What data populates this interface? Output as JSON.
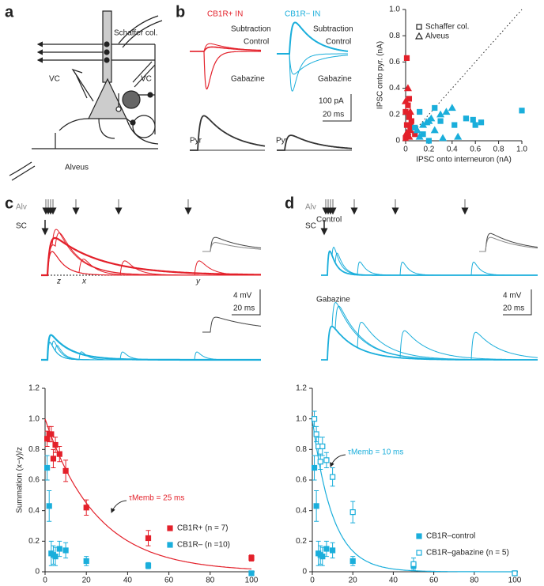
{
  "panel_labels": [
    "a",
    "b",
    "c",
    "d"
  ],
  "diagram": {
    "labels": [
      "Schaffer col.",
      "VC",
      "VC",
      "Alveus"
    ]
  },
  "traces": {
    "b": {
      "titles": [
        "CB1R+ IN",
        "CB1R− IN"
      ],
      "labels": [
        "Subtraction",
        "Control",
        "Gabazine",
        "Subtraction",
        "Control",
        "Gabazine"
      ],
      "scale": [
        "100 pA",
        "20 ms"
      ],
      "pyr": [
        "Pyr",
        "Pyr"
      ]
    },
    "c": {
      "stim": [
        "Alv",
        "SC"
      ],
      "markers": [
        "z",
        "x",
        "y"
      ],
      "scale": [
        "4 mV",
        "20 ms"
      ]
    },
    "d": {
      "stim": [
        "Alv",
        "SC"
      ],
      "conditions": [
        "Control",
        "Gabazine"
      ],
      "scale": [
        "4 mV",
        "20 ms"
      ]
    }
  },
  "chart_data": [
    {
      "type": "scatter",
      "xlabel": "IPSC onto interneuron (nA)",
      "ylabel": "IPSC onto pyr. (nA)",
      "xlim": [
        0,
        1
      ],
      "ylim": [
        0,
        1
      ],
      "xticks": [
        0,
        0.2,
        0.4,
        0.6,
        0.8,
        {
          "value": 1,
          "label": "1.0"
        }
      ],
      "yticks": [
        0,
        0.2,
        0.4,
        0.6,
        0.8,
        {
          "value": 1,
          "label": "1.0"
        }
      ],
      "identity_line": true,
      "legend": [
        {
          "label": "Schaffer col.",
          "marker": "square"
        },
        {
          "label": "Alveus",
          "marker": "triangle"
        }
      ],
      "series": [
        {
          "color": "#e3202a",
          "marker": "square",
          "filled": true,
          "x": [
            0.01,
            0.02,
            0.0,
            0.03,
            0.01,
            0.04,
            0.02,
            0.0,
            0.05,
            0.08,
            0.03
          ],
          "values": [
            0.63,
            0.27,
            0.22,
            0.18,
            0.12,
            0.08,
            0.05,
            0.02,
            0.15,
            0.05,
            0.32
          ]
        },
        {
          "color": "#e3202a",
          "marker": "triangle",
          "filled": true,
          "x": [
            0.02,
            0.0,
            0.04,
            0.05,
            0.01,
            0.03
          ],
          "values": [
            0.4,
            0.3,
            0.22,
            0.12,
            0.06,
            0.03
          ]
        },
        {
          "color": "#1aaedb",
          "marker": "square",
          "filled": true,
          "x": [
            1.0,
            0.58,
            0.52,
            0.6,
            0.65,
            0.42,
            0.3,
            0.25,
            0.12,
            0.08,
            0.15,
            0.2
          ],
          "values": [
            0.23,
            0.16,
            0.17,
            0.12,
            0.14,
            0.12,
            0.15,
            0.25,
            0.22,
            0.1,
            0.05,
            0.0
          ]
        },
        {
          "color": "#1aaedb",
          "marker": "triangle",
          "filled": true,
          "x": [
            0.35,
            0.4,
            0.3,
            0.2,
            0.22,
            0.15,
            0.1,
            0.25,
            0.12,
            0.32,
            0.45,
            0.18
          ],
          "values": [
            0.22,
            0.25,
            0.2,
            0.15,
            0.17,
            0.12,
            0.08,
            0.08,
            0.03,
            0.02,
            0.03,
            0.14
          ]
        }
      ]
    },
    {
      "type": "scatter",
      "xlabel": "ISI (ms)",
      "ylabel": "Summation (x−y)/z",
      "xlim": [
        0,
        100
      ],
      "ylim": [
        0,
        1.2
      ],
      "xticks": [
        0,
        20,
        40,
        60,
        80,
        100
      ],
      "yticks": [
        0,
        0.2,
        0.4,
        0.6,
        0.8,
        {
          "value": 1,
          "label": "1.0"
        },
        1.2
      ],
      "fit": {
        "tau": 25,
        "label": "τMemb = 25 ms",
        "color": "#e3202a"
      },
      "series": [
        {
          "name": "CB1R+ (n = 7)",
          "color": "#e3202a",
          "marker": "square",
          "filled": true,
          "x": [
            1,
            2,
            3,
            4,
            5,
            7,
            10,
            20,
            50,
            100
          ],
          "values": [
            0.87,
            0.9,
            0.9,
            0.74,
            0.83,
            0.77,
            0.66,
            0.42,
            0.22,
            0.09
          ],
          "errors": [
            0.05,
            0.05,
            0.05,
            0.06,
            0.05,
            0.05,
            0.07,
            0.05,
            0.05,
            0.02
          ]
        },
        {
          "name": "CB1R– (n =10)",
          "color": "#1aaedb",
          "marker": "square",
          "filled": true,
          "x": [
            1,
            2,
            3,
            4,
            5,
            7,
            10,
            20,
            50,
            100
          ],
          "values": [
            0.68,
            0.43,
            0.12,
            0.11,
            0.1,
            0.15,
            0.14,
            0.07,
            0.04,
            -0.01
          ],
          "errors": [
            0.08,
            0.1,
            0.08,
            0.06,
            0.06,
            0.05,
            0.05,
            0.03,
            0.02,
            0.01
          ]
        }
      ]
    },
    {
      "type": "scatter",
      "xlabel": "ISI (ms)",
      "xlim": [
        0,
        100
      ],
      "ylim": [
        0,
        1.2
      ],
      "xticks": [
        0,
        20,
        40,
        60,
        80,
        100
      ],
      "yticks": [
        0,
        0.2,
        0.4,
        0.6,
        0.8,
        {
          "value": 1,
          "label": "1.0"
        },
        1.2
      ],
      "fit": {
        "tau": 10,
        "label": "τMemb = 10 ms",
        "color": "#1aaedb"
      },
      "series": [
        {
          "name": "CB1R–control",
          "color": "#1aaedb",
          "marker": "square",
          "filled": true,
          "x": [
            1,
            2,
            3,
            4,
            5,
            7,
            10,
            20,
            50,
            100
          ],
          "values": [
            0.68,
            0.43,
            0.12,
            0.11,
            0.1,
            0.15,
            0.14,
            0.07,
            0.04,
            -0.01
          ],
          "errors": [
            0.08,
            0.1,
            0.08,
            0.06,
            0.06,
            0.05,
            0.05,
            0.03,
            0.02,
            0.01
          ]
        },
        {
          "name": "CB1R–gabazine (n = 5)",
          "color": "#1aaedb",
          "marker": "square",
          "filled": false,
          "x": [
            1,
            2,
            3,
            4,
            5,
            7,
            10,
            20,
            50,
            100
          ],
          "values": [
            1.0,
            0.9,
            0.82,
            0.72,
            0.82,
            0.73,
            0.62,
            0.39,
            0.05,
            -0.01
          ],
          "errors": [
            0.05,
            0.05,
            0.06,
            0.05,
            0.06,
            0.05,
            0.06,
            0.07,
            0.04,
            0.01
          ]
        }
      ]
    }
  ]
}
